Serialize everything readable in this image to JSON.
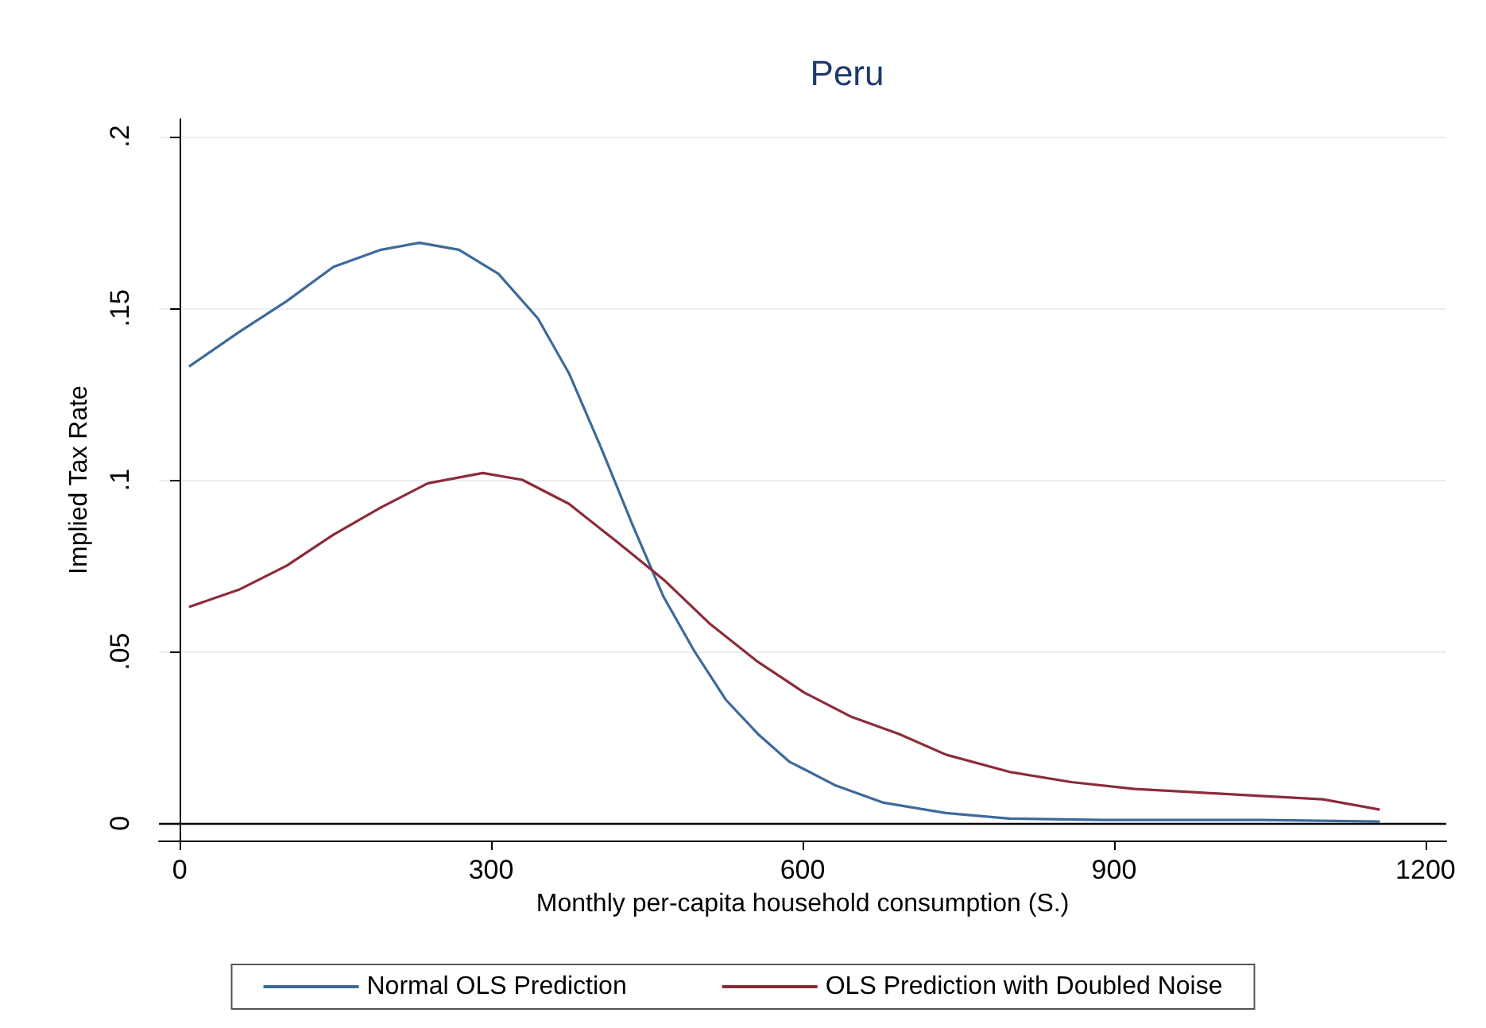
{
  "chart_data": {
    "type": "line",
    "title": "Peru",
    "xlabel": "Monthly per-capita household consumption (S.)",
    "ylabel": "Implied Tax Rate",
    "xlim": [
      -20,
      1220
    ],
    "xticks": [
      0,
      300,
      600,
      900,
      1200
    ],
    "ylim": [
      -0.005,
      0.205
    ],
    "yticks": [
      {
        "value": 0,
        "label": "0"
      },
      {
        "value": 0.05,
        "label": ".05"
      },
      {
        "value": 0.1,
        "label": ".1"
      },
      {
        "value": 0.15,
        "label": ".15"
      },
      {
        "value": 0.2,
        "label": ".2"
      }
    ],
    "grid": "y",
    "legend": "bottom",
    "marker": "none",
    "line_style": "solid",
    "ref_lines": [
      {
        "axis": "y",
        "value": 0,
        "color": "#000000"
      }
    ],
    "series": [
      {
        "name": "Normal OLS Prediction",
        "color": "#3d6a9a",
        "x": [
          9,
          57,
          103,
          148,
          194,
          231,
          269,
          307,
          345,
          375,
          405,
          436,
          466,
          496,
          526,
          557,
          587,
          632,
          678,
          738,
          799,
          890,
          1041,
          1156
        ],
        "values": [
          0.133,
          0.143,
          0.152,
          0.162,
          0.167,
          0.169,
          0.167,
          0.16,
          0.147,
          0.131,
          0.11,
          0.087,
          0.066,
          0.05,
          0.036,
          0.026,
          0.018,
          0.011,
          0.006,
          0.003,
          0.0014,
          0.001,
          0.001,
          0.0005
        ]
      },
      {
        "name": "OLS Prediction with Doubled Noise",
        "color": "#8b2c3a",
        "x": [
          9,
          57,
          103,
          148,
          194,
          239,
          292,
          330,
          375,
          421,
          466,
          511,
          557,
          602,
          647,
          693,
          738,
          799,
          859,
          920,
          980,
          1041,
          1101,
          1156
        ],
        "values": [
          0.063,
          0.068,
          0.075,
          0.084,
          0.092,
          0.099,
          0.102,
          0.1,
          0.093,
          0.082,
          0.071,
          0.058,
          0.047,
          0.038,
          0.031,
          0.026,
          0.02,
          0.015,
          0.012,
          0.01,
          0.009,
          0.008,
          0.007,
          0.004
        ]
      }
    ]
  }
}
